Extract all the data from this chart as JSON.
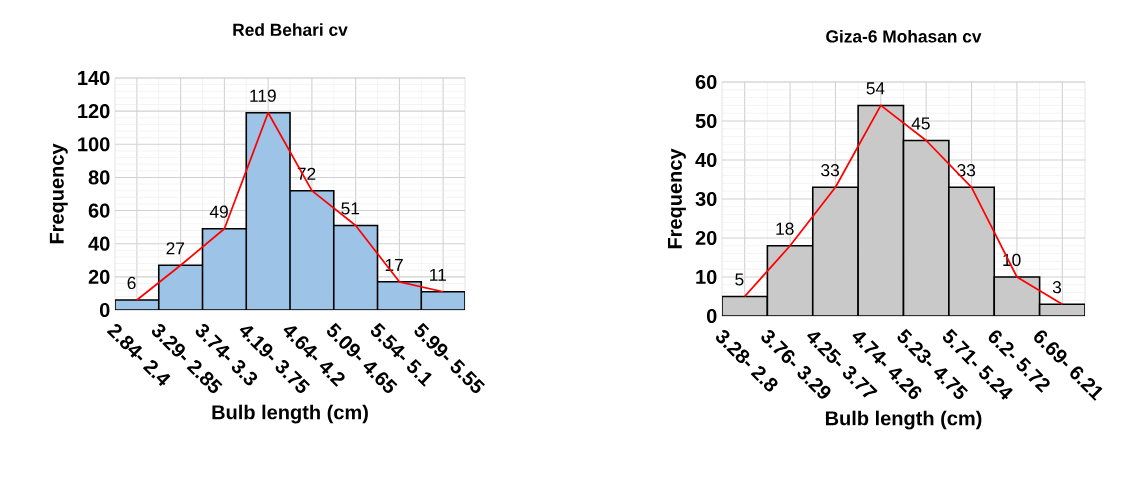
{
  "chart_data": [
    {
      "type": "bar",
      "title": "Red Behari cv",
      "xlabel": "Bulb length (cm)",
      "ylabel": "Frequency",
      "categories": [
        "2.84- 2.4",
        "3.29- 2.85",
        "3.74- 3.3",
        "4.19- 3.75",
        "4.64- 4.2",
        "5.09- 4.65",
        "5.54- 5.1",
        "5.99- 5.55"
      ],
      "ylim": [
        0,
        140
      ],
      "yticks": [
        0,
        20,
        40,
        60,
        80,
        100,
        120,
        140
      ],
      "grid": true,
      "series": [
        {
          "color": "#9dc3e6",
          "values": [
            6,
            27,
            49,
            119,
            72,
            51,
            17,
            11
          ],
          "value_labels": [
            "6",
            "27",
            "49",
            "119",
            "72",
            "51",
            "17",
            "11"
          ]
        },
        {
          "type": "line",
          "color": "#ff0000",
          "values": [
            6,
            27,
            49,
            119,
            72,
            51,
            17,
            11
          ]
        }
      ]
    },
    {
      "type": "bar",
      "title": "Giza-6 Mohasan cv",
      "xlabel": "Bulb length (cm)",
      "ylabel": "Frequency",
      "categories": [
        "3.28- 2.8",
        "3.76- 3.29",
        "4.25- 3.77",
        "4.74- 4.26",
        "5.23- 4.75",
        "5.71- 5.24",
        "6.2- 5.72",
        "6.69- 6.21"
      ],
      "ylim": [
        0,
        60
      ],
      "yticks": [
        0,
        10,
        20,
        30,
        40,
        50,
        60
      ],
      "grid": true,
      "series": [
        {
          "color": "#c9c9c9",
          "values": [
            5,
            18,
            33,
            54,
            45,
            33,
            10,
            3
          ],
          "value_labels": [
            "5",
            "18",
            "33",
            "54",
            "45",
            "33",
            "10",
            "3"
          ]
        },
        {
          "type": "line",
          "color": "#ff0000",
          "values": [
            5,
            18,
            33,
            54,
            45,
            33,
            10,
            3
          ]
        }
      ]
    }
  ]
}
